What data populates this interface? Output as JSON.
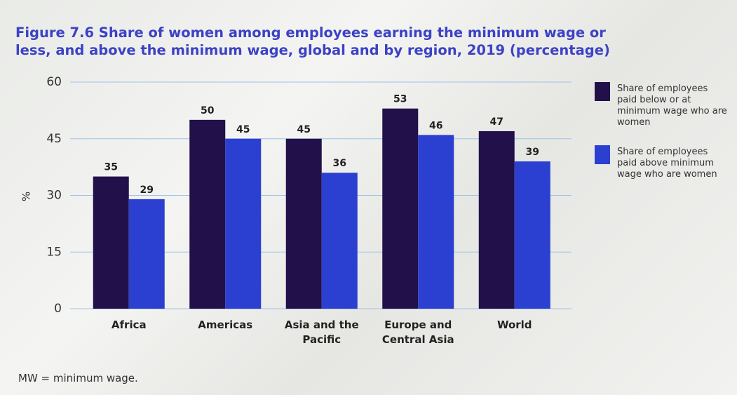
{
  "chart_data": {
    "type": "bar",
    "title": "Figure 7.6 Share of women among employees earning the minimum wage or less, and above the minimum wage, global and by region, 2019 (percentage)",
    "y_label": "%",
    "note": "MW = minimum wage.",
    "categories": [
      "Africa",
      "Americas",
      "Asia and the Pacific",
      "Europe and Central Asia",
      "World"
    ],
    "series": [
      {
        "name": "Share of employees paid below or at minimum wage who are women",
        "color": "#22104a",
        "values": [
          35,
          50,
          45,
          53,
          47
        ]
      },
      {
        "name": "Share of employees paid above minimum wage who are women",
        "color": "#2b3fd0",
        "values": [
          29,
          45,
          36,
          46,
          39
        ]
      }
    ],
    "ylim": [
      0,
      60
    ],
    "yticks": [
      0,
      15,
      30,
      45,
      60
    ],
    "grid": true,
    "legend": "right"
  }
}
